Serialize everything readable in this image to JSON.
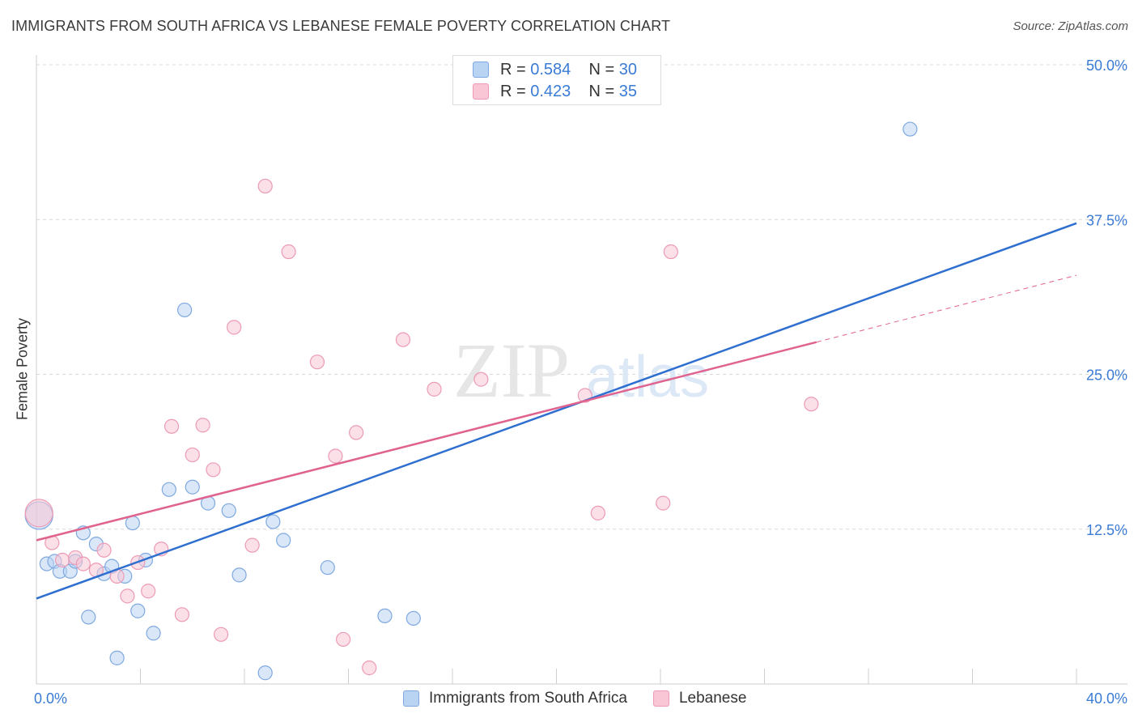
{
  "title": "IMMIGRANTS FROM SOUTH AFRICA VS LEBANESE FEMALE POVERTY CORRELATION CHART",
  "source": "Source: ZipAtlas.com",
  "watermark": {
    "zip": "ZIP",
    "atlas": "atlas"
  },
  "colors": {
    "blue_fill": "#b9d3f3",
    "blue_stroke": "#7fa9e0",
    "blue_line": "#2f6fcf",
    "pink_fill": "#f9c6d6",
    "pink_stroke": "#ec9ab5",
    "pink_line": "#e0628e",
    "axis_label": "#3a7bd5",
    "grid": "#d8d8d8"
  },
  "legend": [
    {
      "series": "Immigrants from South Africa",
      "r_label": "R =",
      "r": "0.584",
      "n_label": "N =",
      "n": "30"
    },
    {
      "series": "Lebanese",
      "r_label": "R =",
      "r": "0.423",
      "n_label": "N =",
      "n": "35"
    }
  ],
  "chart_data": {
    "type": "scatter",
    "title": "IMMIGRANTS FROM SOUTH AFRICA VS LEBANESE FEMALE POVERTY CORRELATION CHART",
    "xlabel": "",
    "ylabel": "Female Poverty",
    "xlim": [
      0,
      40
    ],
    "ylim": [
      0,
      50
    ],
    "x_tick_labels": [
      "0.0%",
      "40.0%"
    ],
    "y_ticks": [
      12.5,
      25.0,
      37.5,
      50.0
    ],
    "y_tick_labels": [
      "12.5%",
      "25.0%",
      "37.5%",
      "50.0%"
    ],
    "grid": true,
    "legend_position": "top-center",
    "series": [
      {
        "name": "Immigrants from South Africa",
        "color": "#7fa9e0",
        "points": [
          {
            "x": 0.1,
            "y": 13.6,
            "size": "large"
          },
          {
            "x": 0.4,
            "y": 9.7
          },
          {
            "x": 0.7,
            "y": 9.9
          },
          {
            "x": 0.9,
            "y": 9.1
          },
          {
            "x": 1.3,
            "y": 9.1
          },
          {
            "x": 1.5,
            "y": 9.9
          },
          {
            "x": 1.8,
            "y": 12.2
          },
          {
            "x": 2.0,
            "y": 5.4
          },
          {
            "x": 2.3,
            "y": 11.3
          },
          {
            "x": 2.6,
            "y": 8.9
          },
          {
            "x": 2.9,
            "y": 9.5
          },
          {
            "x": 3.1,
            "y": 2.1
          },
          {
            "x": 3.4,
            "y": 8.7
          },
          {
            "x": 3.7,
            "y": 13.0
          },
          {
            "x": 3.9,
            "y": 5.9
          },
          {
            "x": 4.2,
            "y": 10.0
          },
          {
            "x": 4.5,
            "y": 4.1
          },
          {
            "x": 5.1,
            "y": 15.7
          },
          {
            "x": 5.7,
            "y": 30.2
          },
          {
            "x": 6.0,
            "y": 15.9
          },
          {
            "x": 6.6,
            "y": 14.6
          },
          {
            "x": 7.4,
            "y": 14.0
          },
          {
            "x": 7.8,
            "y": 8.8
          },
          {
            "x": 8.8,
            "y": 0.9
          },
          {
            "x": 9.1,
            "y": 13.1
          },
          {
            "x": 9.5,
            "y": 11.6
          },
          {
            "x": 11.2,
            "y": 9.4
          },
          {
            "x": 13.4,
            "y": 5.5
          },
          {
            "x": 14.5,
            "y": 5.3
          },
          {
            "x": 33.6,
            "y": 44.8
          }
        ]
      },
      {
        "name": "Lebanese",
        "color": "#ec9ab5",
        "points": [
          {
            "x": 0.1,
            "y": 13.8,
            "size": "large"
          },
          {
            "x": 0.6,
            "y": 11.4
          },
          {
            "x": 1.0,
            "y": 10.0
          },
          {
            "x": 1.5,
            "y": 10.2
          },
          {
            "x": 1.8,
            "y": 9.7
          },
          {
            "x": 2.3,
            "y": 9.2
          },
          {
            "x": 2.6,
            "y": 10.8
          },
          {
            "x": 3.1,
            "y": 8.7
          },
          {
            "x": 3.5,
            "y": 7.1
          },
          {
            "x": 3.9,
            "y": 9.8
          },
          {
            "x": 4.3,
            "y": 7.5
          },
          {
            "x": 4.8,
            "y": 10.9
          },
          {
            "x": 5.2,
            "y": 20.8
          },
          {
            "x": 5.6,
            "y": 5.6
          },
          {
            "x": 6.0,
            "y": 18.5
          },
          {
            "x": 6.4,
            "y": 20.9
          },
          {
            "x": 6.8,
            "y": 17.3
          },
          {
            "x": 7.1,
            "y": 4.0
          },
          {
            "x": 7.6,
            "y": 28.8
          },
          {
            "x": 8.3,
            "y": 11.2
          },
          {
            "x": 8.8,
            "y": 40.2
          },
          {
            "x": 9.7,
            "y": 34.9
          },
          {
            "x": 10.8,
            "y": 26.0
          },
          {
            "x": 11.5,
            "y": 18.4
          },
          {
            "x": 11.8,
            "y": 3.6
          },
          {
            "x": 12.3,
            "y": 20.3
          },
          {
            "x": 12.8,
            "y": 1.3
          },
          {
            "x": 14.1,
            "y": 27.8
          },
          {
            "x": 15.3,
            "y": 23.8
          },
          {
            "x": 17.1,
            "y": 24.6
          },
          {
            "x": 21.1,
            "y": 23.3
          },
          {
            "x": 21.6,
            "y": 13.8
          },
          {
            "x": 24.1,
            "y": 14.6
          },
          {
            "x": 24.4,
            "y": 34.9
          },
          {
            "x": 29.8,
            "y": 22.6
          }
        ]
      }
    ],
    "trendlines": [
      {
        "series": "Immigrants from South Africa",
        "x": [
          0,
          40
        ],
        "y": [
          6.9,
          37.2
        ],
        "style": "solid"
      },
      {
        "series": "Lebanese",
        "x": [
          0,
          30
        ],
        "y": [
          11.6,
          27.6
        ],
        "style": "solid"
      },
      {
        "series": "Lebanese",
        "x": [
          30,
          40
        ],
        "y": [
          27.6,
          33.0
        ],
        "style": "dashed"
      }
    ]
  }
}
